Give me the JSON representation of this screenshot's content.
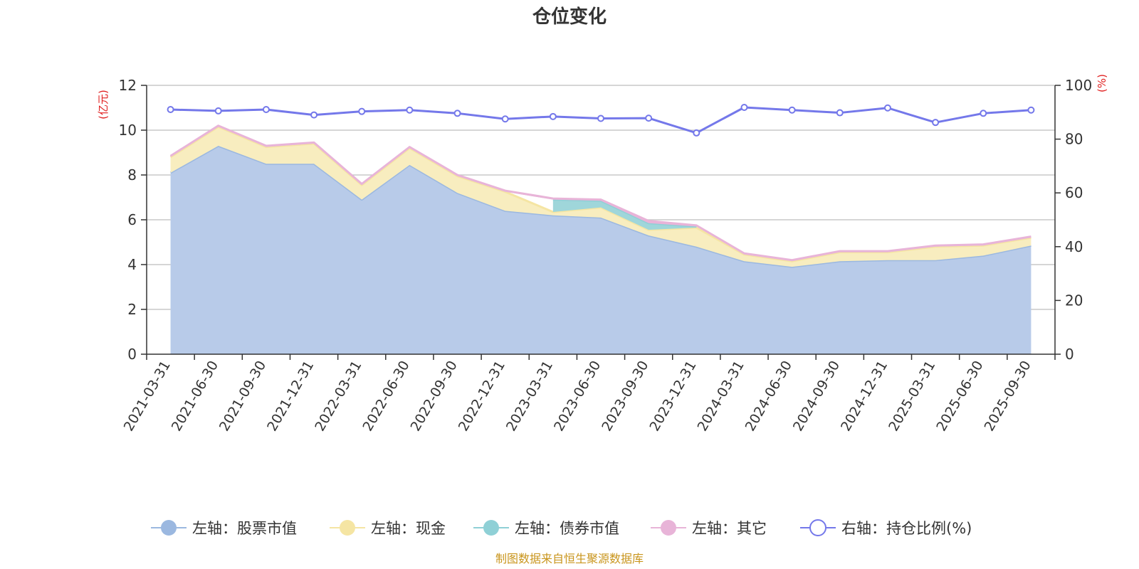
{
  "colors": {
    "stock": "#9bb8e0",
    "stock_fill": "#b8cbe9",
    "cash": "#f5e5a3",
    "cash_fill": "#f8edbf",
    "bond": "#8fd0d6",
    "bond_fill": "#9fd6da",
    "other": "#e8b4d8",
    "ratio": "#7478ea",
    "unit": "#e01f1f",
    "source": "#c9951c",
    "grid": "#c8c8c8",
    "axis": "#333333"
  },
  "chart_data": {
    "type": "area",
    "title": "仓位变化",
    "categories": [
      "2021-03-31",
      "2021-06-30",
      "2021-09-30",
      "2021-12-31",
      "2022-03-31",
      "2022-06-30",
      "2022-09-30",
      "2022-12-31",
      "2023-03-31",
      "2023-06-30",
      "2023-09-30",
      "2023-12-31",
      "2024-03-31",
      "2024-06-30",
      "2024-09-30",
      "2024-12-31",
      "2025-03-31",
      "2025-06-30",
      "2025-09-30"
    ],
    "left_axis": {
      "unit": "(亿元)",
      "ylim": [
        0,
        12
      ],
      "ticks": [
        "0",
        "2",
        "4",
        "6",
        "8",
        "10",
        "12"
      ]
    },
    "right_axis": {
      "unit": "(%)",
      "ylim": [
        0,
        100
      ],
      "ticks": [
        "0",
        "20",
        "40",
        "60",
        "80",
        "100"
      ]
    },
    "series": [
      {
        "name": "左轴：股票市值",
        "key": "stock",
        "axis": "left",
        "stacked": true,
        "values": [
          8.1,
          9.3,
          8.5,
          8.5,
          6.9,
          8.45,
          7.2,
          6.4,
          6.2,
          6.1,
          5.3,
          4.8,
          4.15,
          3.9,
          4.15,
          4.2,
          4.2,
          4.4,
          4.85
        ]
      },
      {
        "name": "左轴：现金",
        "key": "cash",
        "axis": "left",
        "stacked": true,
        "values": [
          0.7,
          0.85,
          0.75,
          0.9,
          0.65,
          0.75,
          0.75,
          0.85,
          0.15,
          0.45,
          0.25,
          0.85,
          0.3,
          0.25,
          0.4,
          0.35,
          0.6,
          0.45,
          0.35
        ]
      },
      {
        "name": "左轴：债券市值",
        "key": "bond",
        "axis": "left",
        "stacked": true,
        "values": [
          null,
          null,
          null,
          null,
          null,
          null,
          null,
          null,
          0.55,
          0.3,
          0.3,
          0.05,
          null,
          null,
          null,
          null,
          null,
          null,
          null
        ]
      },
      {
        "name": "左轴：其它",
        "key": "other",
        "axis": "left",
        "stacked": true,
        "values": [
          0.05,
          0.05,
          0.05,
          0.05,
          0.05,
          0.05,
          0.05,
          0.05,
          0.05,
          0.05,
          0.1,
          0.05,
          0.05,
          0.05,
          0.05,
          0.05,
          0.05,
          0.05,
          0.05
        ]
      },
      {
        "name": "右轴：持仓比例(%)",
        "key": "ratio",
        "axis": "right",
        "type": "line",
        "values": [
          91,
          90.5,
          91,
          89,
          90.3,
          90.8,
          89.6,
          87.5,
          88.4,
          87.7,
          87.8,
          82.3,
          91.8,
          90.8,
          89.8,
          91.6,
          86.2,
          89.6,
          90.8
        ]
      }
    ],
    "legend_position": "bottom",
    "source_note": "制图数据来自恒生聚源数据库"
  }
}
